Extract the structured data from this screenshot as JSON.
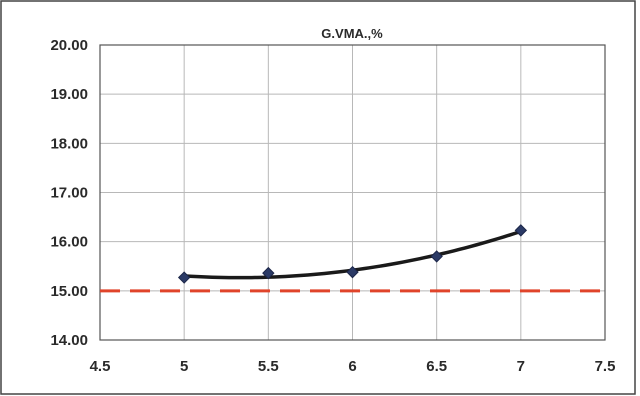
{
  "chart_data": {
    "type": "line",
    "title": "G.VMA.,%",
    "xlabel": "",
    "ylabel": "",
    "xlim": [
      4.5,
      7.5
    ],
    "ylim": [
      14.0,
      20.0
    ],
    "x_ticks": [
      "4.5",
      "5",
      "5.5",
      "6",
      "6.5",
      "7",
      "7.5"
    ],
    "y_ticks": [
      "14.00",
      "15.00",
      "16.00",
      "17.00",
      "18.00",
      "19.00",
      "20.00"
    ],
    "grid": true,
    "legend": "none",
    "series": [
      {
        "x": [
          5,
          5.5,
          6,
          6.5,
          7
        ],
        "y": [
          15.27,
          15.36,
          15.38,
          15.7,
          16.23
        ],
        "color": "#2b3a66",
        "marker": "diamond",
        "trendline": "polynomial"
      }
    ],
    "reference_line": {
      "y": 15.0,
      "color": "#e0442a",
      "style": "dashed"
    }
  }
}
